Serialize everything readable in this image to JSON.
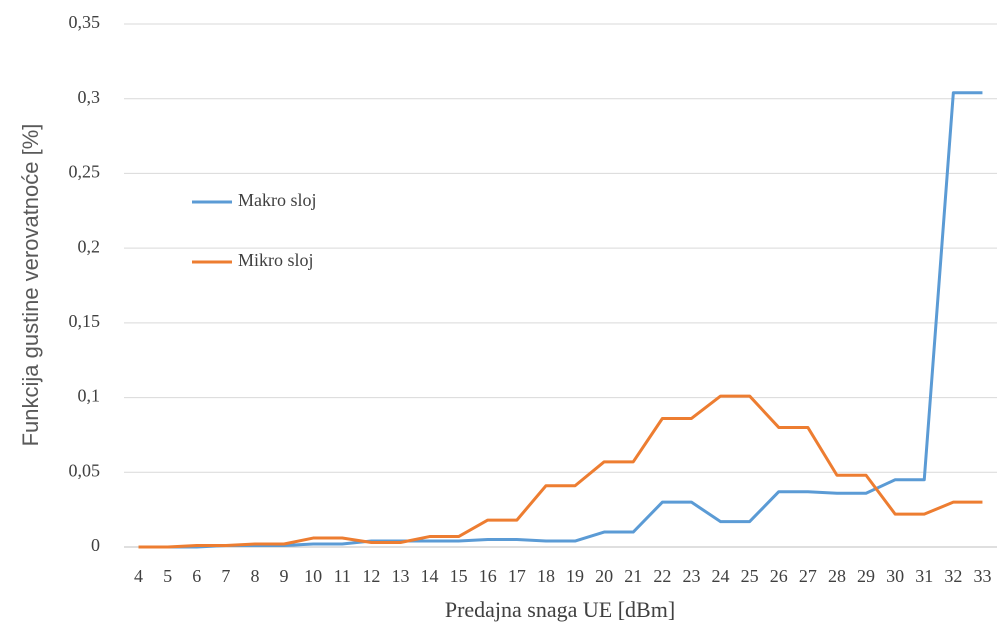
{
  "chart_data": {
    "type": "line",
    "x_label": "Predajna snaga UE [dBm]",
    "y_label": "Funkcija gustine verovatnoće [%]",
    "categories": [
      "4",
      "5",
      "6",
      "7",
      "8",
      "9",
      "10",
      "11",
      "12",
      "13",
      "14",
      "15",
      "16",
      "17",
      "18",
      "19",
      "20",
      "21",
      "22",
      "23",
      "24",
      "25",
      "26",
      "27",
      "28",
      "29",
      "30",
      "31",
      "32",
      "33"
    ],
    "series": [
      {
        "name": "Makro sloj",
        "color": "#5b9bd5",
        "values": [
          0,
          0,
          0,
          0.001,
          0.001,
          0.001,
          0.002,
          0.002,
          0.004,
          0.004,
          0.004,
          0.004,
          0.005,
          0.005,
          0.004,
          0.004,
          0.01,
          0.01,
          0.03,
          0.03,
          0.017,
          0.017,
          0.037,
          0.037,
          0.036,
          0.036,
          0.045,
          0.045,
          0.304,
          0.304
        ]
      },
      {
        "name": "Mikro sloj",
        "color": "#ed7d31",
        "values": [
          0,
          0,
          0.001,
          0.001,
          0.002,
          0.002,
          0.006,
          0.006,
          0.003,
          0.003,
          0.007,
          0.007,
          0.018,
          0.018,
          0.041,
          0.041,
          0.057,
          0.057,
          0.086,
          0.086,
          0.101,
          0.101,
          0.08,
          0.08,
          0.048,
          0.048,
          0.022,
          0.022,
          0.03,
          0.03
        ]
      }
    ],
    "ylim": [
      0,
      0.35
    ],
    "yticks": [
      0,
      {
        "value": 0.05,
        "label": "0,05"
      },
      {
        "value": 0.1,
        "label": "0,1"
      },
      {
        "value": 0.15,
        "label": "0,15"
      },
      {
        "value": 0.2,
        "label": "0,2"
      },
      {
        "value": 0.25,
        "label": "0,25"
      },
      {
        "value": 0.3,
        "label": "0,3"
      },
      {
        "value": 0.35,
        "label": "0,35"
      }
    ],
    "grid": true,
    "legend": "left"
  }
}
